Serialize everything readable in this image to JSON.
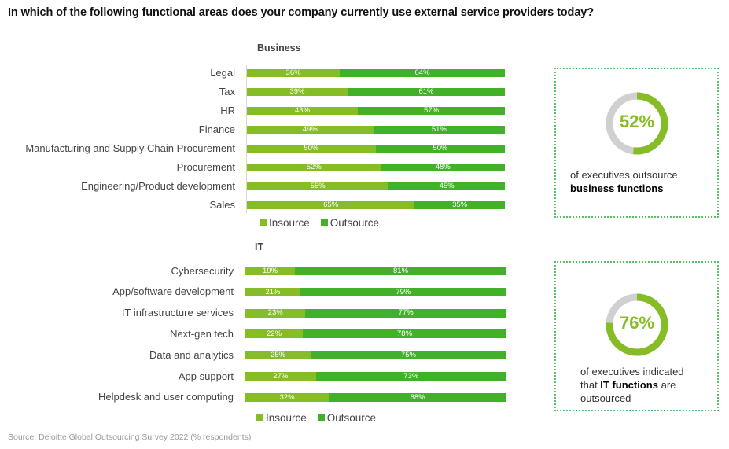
{
  "title": "In which of the following functional areas does your company currently use external service providers today?",
  "source": "Source: Deloitte Global Outsourcing Survey 2022 (% respondents)",
  "colors": {
    "insource": "#86bc25",
    "outsource": "#43b02a",
    "donut_track": "#d0d0d0",
    "callout_border": "#5bbf63"
  },
  "chart_data": [
    {
      "type": "bar",
      "orientation": "horizontal",
      "stacked": true,
      "title": "Business",
      "categories": [
        "Legal",
        "Tax",
        "HR",
        "Finance",
        "Manufacturing and Supply Chain Procurement",
        "Procurement",
        "Engineering/Product development",
        "Sales"
      ],
      "series": [
        {
          "name": "Insource",
          "values": [
            36,
            39,
            43,
            49,
            50,
            52,
            55,
            65
          ],
          "labels": [
            "36%",
            "39%",
            "43%",
            "49%",
            "50%",
            "52%",
            "55%",
            "65%"
          ]
        },
        {
          "name": "Outsource",
          "values": [
            64,
            61,
            57,
            51,
            50,
            48,
            45,
            35
          ],
          "labels": [
            "64%",
            "61%",
            "57%",
            "51%",
            "50%",
            "48%",
            "45%",
            "35%"
          ]
        }
      ],
      "xlim": [
        0,
        100
      ],
      "grid": false,
      "legend": "bottom-left"
    },
    {
      "type": "bar",
      "orientation": "horizontal",
      "stacked": true,
      "title": "IT",
      "categories": [
        "Cybersecurity",
        "App/software development",
        "IT infrastructure services",
        "Next-gen tech",
        "Data and analytics",
        "App support",
        "Helpdesk and user computing"
      ],
      "series": [
        {
          "name": "Insource",
          "values": [
            19,
            21,
            23,
            22,
            25,
            27,
            32
          ],
          "labels": [
            "19%",
            "21%",
            "23%",
            "22%",
            "25%",
            "27%",
            "32%"
          ]
        },
        {
          "name": "Outsource",
          "values": [
            81,
            79,
            77,
            78,
            75,
            73,
            68
          ],
          "labels": [
            "81%",
            "79%",
            "77%",
            "78%",
            "75%",
            "73%",
            "68%"
          ]
        }
      ],
      "xlim": [
        0,
        100
      ],
      "grid": false,
      "legend": "bottom-left"
    },
    {
      "type": "pie",
      "variant": "donut",
      "title": "52%",
      "values": [
        52,
        48
      ],
      "labels": [
        "Outsource business functions",
        "Other"
      ]
    },
    {
      "type": "pie",
      "variant": "donut",
      "title": "76%",
      "values": [
        76,
        24
      ],
      "labels": [
        "IT functions outsourced",
        "Other"
      ]
    }
  ],
  "callouts": [
    {
      "value_label": "52%",
      "text_pre": "of executives outsource",
      "text_bold": "business functions",
      "text_post": ""
    },
    {
      "value_label": "76%",
      "text_pre": "of executives indicated that",
      "text_bold": "IT functions",
      "text_post": "are outsourced"
    }
  ]
}
